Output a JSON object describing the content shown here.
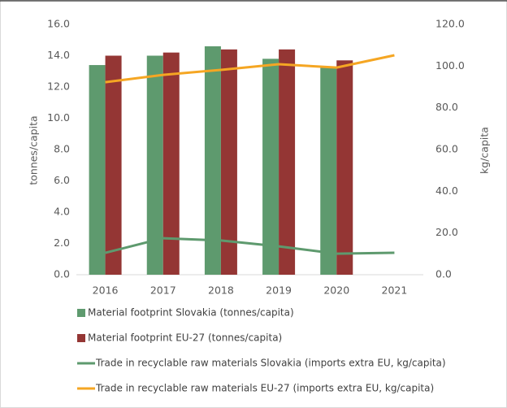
{
  "chart_data": {
    "type": "bar",
    "categories": [
      "2016",
      "2017",
      "2018",
      "2019",
      "2020",
      "2021"
    ],
    "ylabel": "tonnes/capita",
    "y2label": "kg/capita",
    "ylim": [
      0,
      16
    ],
    "yticks": [
      {
        "value": 0,
        "label": "0.0"
      },
      {
        "value": 2,
        "label": "2.0"
      },
      {
        "value": 4,
        "label": "4.0"
      },
      {
        "value": 6,
        "label": "6.0"
      },
      {
        "value": 8,
        "label": "8.0"
      },
      {
        "value": 10,
        "label": "10.0"
      },
      {
        "value": 12,
        "label": "12.0"
      },
      {
        "value": 14,
        "label": "14.0"
      },
      {
        "value": 16,
        "label": "16.0"
      }
    ],
    "y2lim": [
      0,
      120
    ],
    "y2ticks": [
      {
        "value": 0,
        "label": "0.0"
      },
      {
        "value": 20,
        "label": "20.0"
      },
      {
        "value": 40,
        "label": "40.0"
      },
      {
        "value": 60,
        "label": "60.0"
      },
      {
        "value": 80,
        "label": "80.0"
      },
      {
        "value": 100,
        "label": "100.0"
      },
      {
        "value": 120,
        "label": "120.0"
      }
    ],
    "series": [
      {
        "name": "Material footprint Slovakia (tonnes/capita)",
        "type": "bar",
        "color": "#5e9a6e",
        "values": [
          13.4,
          14.0,
          14.6,
          13.8,
          13.3,
          null
        ]
      },
      {
        "name": "Material footprint EU-27 (tonnes/capita)",
        "type": "bar",
        "color": "#943634",
        "values": [
          14.0,
          14.2,
          14.4,
          14.4,
          13.7,
          null
        ]
      },
      {
        "name": "Trade in recyclable raw materials Slovakia (imports extra EU, kg/capita)",
        "type": "line",
        "axis": "y2",
        "color": "#5e9a6e",
        "values": [
          10.5,
          17.5,
          16.4,
          13.6,
          10.1,
          10.5
        ]
      },
      {
        "name": "Trade in recyclable raw materials EU-27 (imports extra EU, kg/capita)",
        "type": "line",
        "axis": "y2",
        "color": "#f5a623",
        "values": [
          92.3,
          95.8,
          98.2,
          100.9,
          99.3,
          105.2
        ]
      }
    ]
  }
}
